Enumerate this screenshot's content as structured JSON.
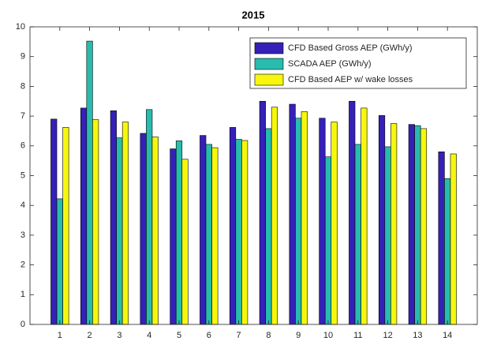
{
  "chart_data": {
    "type": "bar",
    "title": "2015",
    "x": [
      1,
      2,
      3,
      4,
      5,
      6,
      7,
      8,
      9,
      10,
      11,
      12,
      13,
      14
    ],
    "series": [
      {
        "name": "CFD Based Gross AEP (GWh/y)",
        "color": "#3521b8",
        "values": [
          6.9,
          7.27,
          7.18,
          6.42,
          5.9,
          6.35,
          6.62,
          7.5,
          7.4,
          6.93,
          7.5,
          7.02,
          6.72,
          5.8
        ]
      },
      {
        "name": "SCADA AEP (GWh/y)",
        "color": "#27bcae",
        "values": [
          4.22,
          9.52,
          6.27,
          7.22,
          6.17,
          6.05,
          6.22,
          6.58,
          6.93,
          5.63,
          6.05,
          5.97,
          6.68,
          4.9
        ]
      },
      {
        "name": "CFD Based AEP w/ wake losses",
        "color": "#f7f70e",
        "values": [
          6.62,
          6.88,
          6.8,
          6.3,
          5.55,
          5.94,
          6.18,
          7.3,
          7.15,
          6.8,
          7.27,
          6.75,
          6.58,
          5.73
        ]
      }
    ],
    "xlim": [
      0,
      15
    ],
    "xticks": [
      1,
      2,
      3,
      4,
      5,
      6,
      7,
      8,
      9,
      10,
      11,
      12,
      13,
      14
    ],
    "ylim": [
      0,
      10
    ],
    "yticks": [
      0,
      1,
      2,
      3,
      4,
      5,
      6,
      7,
      8,
      9,
      10
    ],
    "legend": "top-right"
  }
}
